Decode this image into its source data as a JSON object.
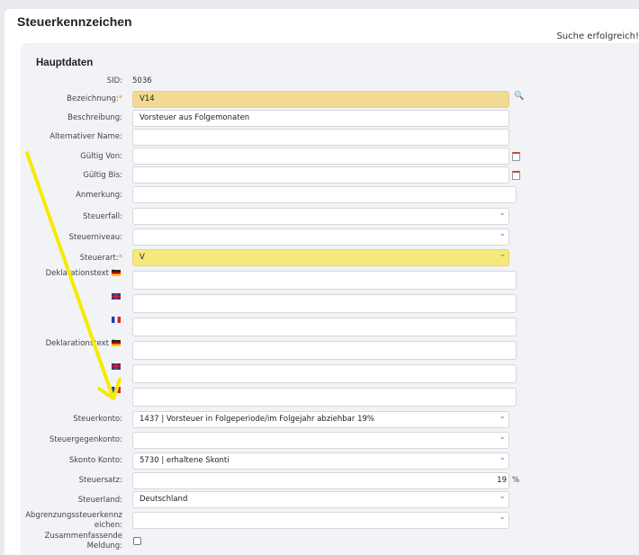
{
  "header": {
    "title": "Steuerkennzeichen",
    "status": "Suche erfolgreich!"
  },
  "section": {
    "title": "Hauptdaten"
  },
  "fields": {
    "sid": {
      "label": "SID:",
      "value": "5036"
    },
    "bezeichnung": {
      "label": "Bezeichnung:",
      "value": "V14"
    },
    "beschreibung": {
      "label": "Beschreibung:",
      "value": "Vorsteuer aus Folgemonaten"
    },
    "alt_name": {
      "label": "Alternativer Name:",
      "value": ""
    },
    "gueltig_von": {
      "label": "Gültig Von:",
      "value": ""
    },
    "gueltig_bis": {
      "label": "Gültig Bis:",
      "value": ""
    },
    "anmerkung": {
      "label": "Anmerkung:",
      "value": ""
    },
    "steuerfall": {
      "label": "Steuerfall:",
      "value": ""
    },
    "steuerniveau": {
      "label": "Steuerniveau:",
      "value": ""
    },
    "steuerart": {
      "label": "Steuerart:",
      "value": "V"
    },
    "dekl1": {
      "label": "Deklarationstext 1:"
    },
    "dekl2": {
      "label": "Deklarationstext 2:"
    },
    "steuerkonto": {
      "label": "Steuerkonto:",
      "value": "1437 | Vorsteuer in Folgeperiode/im Folgejahr abziehbar 19%"
    },
    "steuergegenkonto": {
      "label": "Steuergegenkonto:",
      "value": ""
    },
    "skonto": {
      "label": "Skonto Konto:",
      "value": "5730 | erhaltene Skonti"
    },
    "steuersatz": {
      "label": "Steuersatz:",
      "value": "19",
      "unit": "%"
    },
    "steuerland": {
      "label": "Steuerland:",
      "value": "Deutschland"
    },
    "abgrenzung": {
      "label_1": "Abgrenzungssteuerkennz",
      "label_2": "eichen:",
      "value": ""
    },
    "zm": {
      "label_1": "Zusammenfassende",
      "label_2": "Meldung:",
      "checked": false
    }
  },
  "required_mark": "*",
  "colors": {
    "required_bg": "#f2d994",
    "steuerart_bg": "#f5e97e",
    "annotation_arrow": "#f7ea00"
  }
}
